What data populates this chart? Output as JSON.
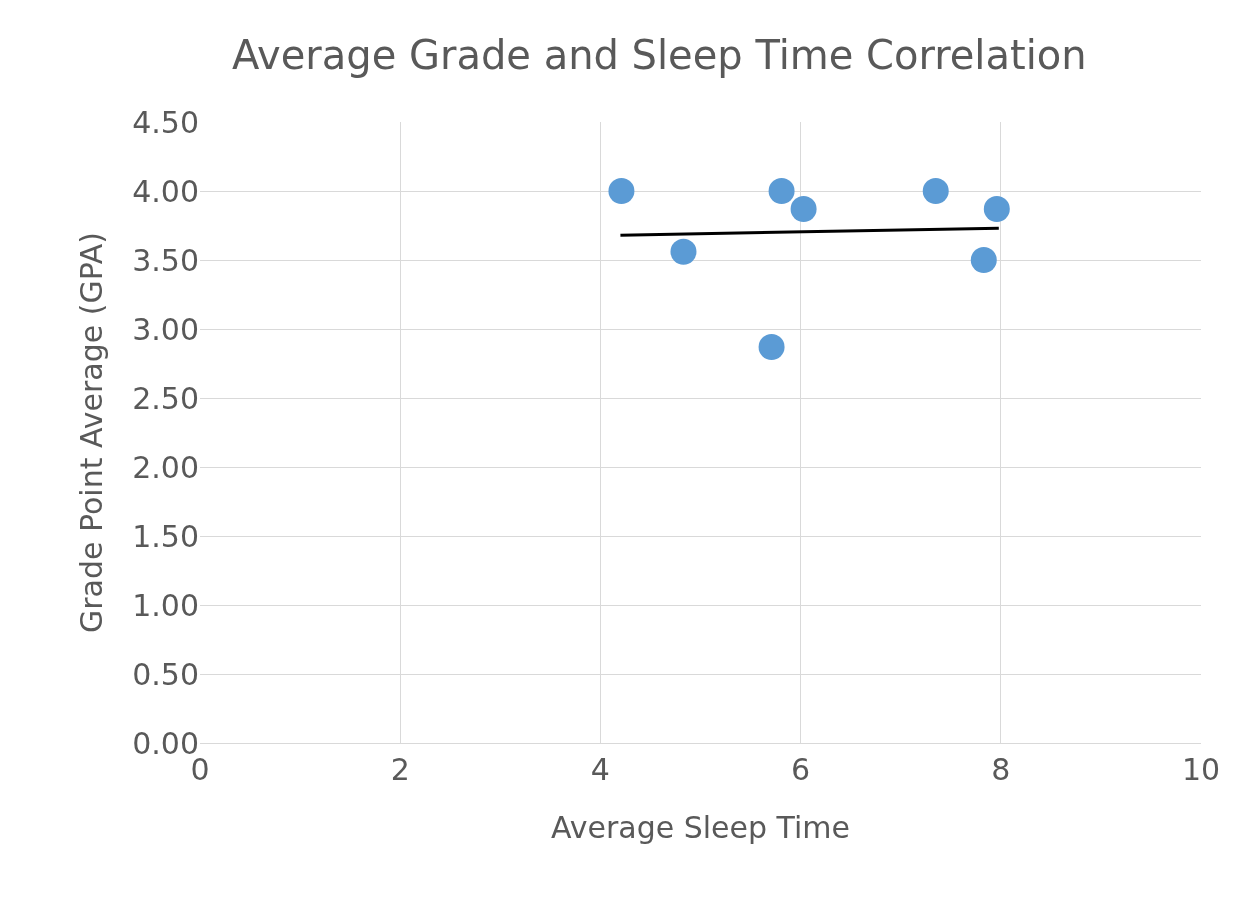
{
  "chart_data": {
    "type": "scatter",
    "title": "Average Grade and Sleep Time Correlation",
    "xlabel": "Average Sleep Time",
    "ylabel": "Grade Point Average (GPA)",
    "series": [
      {
        "color": "#5b9bd5",
        "marker": "circle",
        "x": [
          4.21,
          4.83,
          5.81,
          5.71,
          6.03,
          7.35,
          7.83,
          7.96
        ],
        "values": [
          4.0,
          3.56,
          4.0,
          2.87,
          3.87,
          4.0,
          3.5,
          3.87
        ]
      },
      {
        "type": "line",
        "color": "#000000",
        "marker": "none",
        "x": [
          4.2,
          7.98
        ],
        "values": [
          3.68,
          3.73
        ]
      }
    ],
    "xlim": [
      0,
      10
    ],
    "xticks": [
      0,
      2,
      4,
      6,
      8,
      10
    ],
    "ylim": [
      0,
      4.5
    ],
    "yticks": [
      {
        "value": 0,
        "label": "0.00"
      },
      {
        "value": 0.5,
        "label": "0.50"
      },
      {
        "value": 1,
        "label": "1.00"
      },
      {
        "value": 1.5,
        "label": "1.50"
      },
      {
        "value": 2,
        "label": "2.00"
      },
      {
        "value": 2.5,
        "label": "2.50"
      },
      {
        "value": 3,
        "label": "3.00"
      },
      {
        "value": 3.5,
        "label": "3.50"
      },
      {
        "value": 4,
        "label": "4.00"
      },
      {
        "value": 4.5,
        "label": "4.50"
      }
    ],
    "grid": true
  }
}
